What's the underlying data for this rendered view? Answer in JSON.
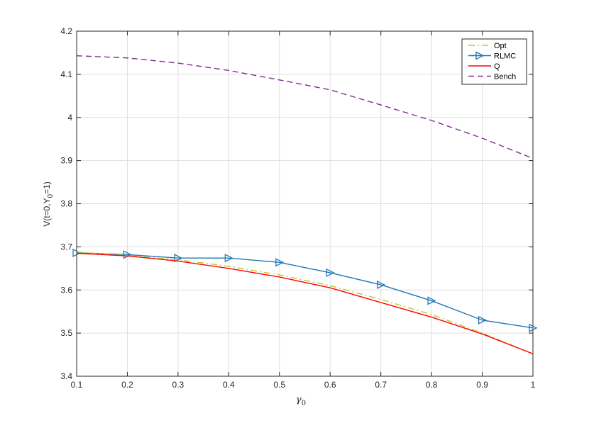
{
  "chart_data": {
    "type": "line",
    "xlabel_main": "γ",
    "xlabel_sub": "0",
    "ylabel_text": "V(t=0,Y",
    "ylabel_sub": "0",
    "ylabel_end": "=1)",
    "xlim": [
      0.1,
      1.0
    ],
    "ylim": [
      3.4,
      4.2
    ],
    "x_ticks": [
      0.1,
      0.2,
      0.3,
      0.4,
      0.5,
      0.6,
      0.7,
      0.8,
      0.9,
      1
    ],
    "x_tick_labels": [
      "0.1",
      "0.2",
      "0.3",
      "0.4",
      "0.5",
      "0.6",
      "0.7",
      "0.8",
      "0.9",
      "1"
    ],
    "y_ticks": [
      3.4,
      3.5,
      3.6,
      3.7,
      3.8,
      3.9,
      4.0,
      4.1,
      4.2
    ],
    "y_tick_labels": [
      "3.4",
      "3.5",
      "3.6",
      "3.7",
      "3.8",
      "3.9",
      "4",
      "4.1",
      "4.2"
    ],
    "grid": true,
    "legend_position": "top-right",
    "x": [
      0.1,
      0.2,
      0.3,
      0.4,
      0.5,
      0.6,
      0.7,
      0.8,
      0.9,
      1.0
    ],
    "series": [
      {
        "name": "Opt",
        "color": "#c0c72e",
        "style": "dashdot",
        "marker": "none",
        "values": [
          3.688,
          3.68,
          3.67,
          3.655,
          3.635,
          3.61,
          3.578,
          3.543,
          3.5,
          3.452
        ]
      },
      {
        "name": "RLMC",
        "color": "#1f77b4",
        "style": "solid",
        "marker": "triangle-right",
        "values": [
          3.686,
          3.682,
          3.674,
          3.674,
          3.664,
          3.64,
          3.612,
          3.575,
          3.53,
          3.512
        ]
      },
      {
        "name": "Q",
        "color": "#ff0000",
        "style": "solid",
        "marker": "none",
        "values": [
          3.685,
          3.679,
          3.667,
          3.65,
          3.63,
          3.605,
          3.571,
          3.537,
          3.498,
          3.452
        ]
      },
      {
        "name": "Bench",
        "color": "#7e2f8e",
        "style": "dashed",
        "marker": "none",
        "values": [
          4.143,
          4.138,
          4.126,
          4.109,
          4.087,
          4.064,
          4.029,
          3.993,
          3.952,
          3.905
        ]
      }
    ]
  }
}
